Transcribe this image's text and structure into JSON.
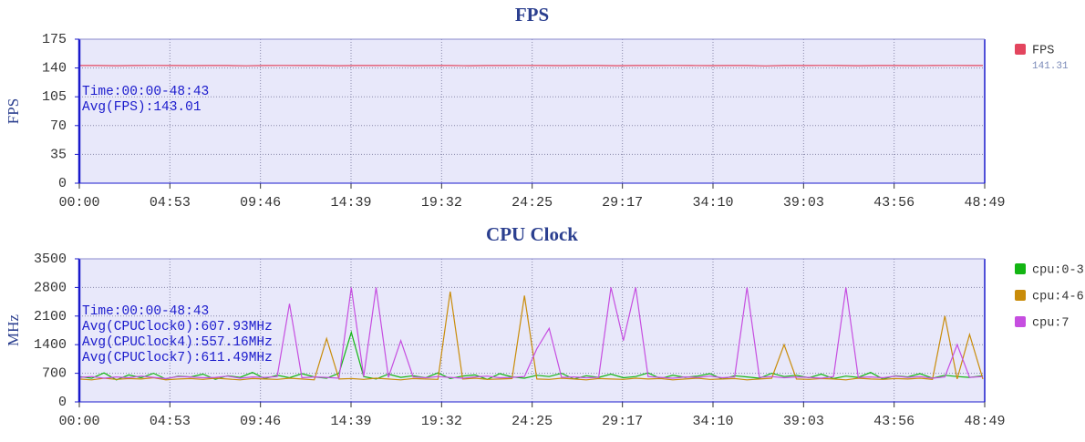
{
  "chart_data": [
    {
      "type": "line",
      "title": "FPS",
      "y_label": "FPS",
      "xlim": [
        0,
        2929
      ],
      "xticks": [
        {
          "value": 0,
          "label": "00:00"
        },
        {
          "value": 293,
          "label": "04:53"
        },
        {
          "value": 586,
          "label": "09:46"
        },
        {
          "value": 879,
          "label": "14:39"
        },
        {
          "value": 1172,
          "label": "19:32"
        },
        {
          "value": 1465,
          "label": "24:25"
        },
        {
          "value": 1757,
          "label": "29:17"
        },
        {
          "value": 2050,
          "label": "34:10"
        },
        {
          "value": 2343,
          "label": "39:03"
        },
        {
          "value": 2636,
          "label": "43:56"
        },
        {
          "value": 2929,
          "label": "48:49"
        }
      ],
      "ylim": [
        0,
        175
      ],
      "yticks": [
        0,
        35,
        70,
        105,
        140,
        175
      ],
      "grid": true,
      "x": [
        0,
        60,
        120,
        180,
        240,
        300,
        360,
        420,
        480,
        540,
        600,
        660,
        720,
        780,
        840,
        900,
        960,
        1020,
        1080,
        1140,
        1200,
        1260,
        1320,
        1380,
        1440,
        1500,
        1560,
        1620,
        1680,
        1740,
        1800,
        1860,
        1920,
        1980,
        2040,
        2100,
        2160,
        2220,
        2280,
        2340,
        2400,
        2460,
        2520,
        2580,
        2640,
        2700,
        2760,
        2820,
        2880,
        2923
      ],
      "series": [
        {
          "name": "FPS",
          "color": "#e3455e",
          "legend_value": 141.31,
          "values": [
            143,
            143,
            142.8,
            143,
            143.1,
            143,
            142.9,
            143,
            143,
            142.7,
            143,
            143.1,
            143,
            143,
            142.8,
            143,
            143,
            143.1,
            142.9,
            143,
            143,
            142.8,
            143,
            143,
            143.1,
            143,
            142.9,
            143,
            143,
            142.8,
            143,
            143,
            143.1,
            143,
            142.9,
            143,
            143,
            142.6,
            143,
            143,
            143.1,
            143,
            142.8,
            143,
            143,
            142.9,
            143,
            143.1,
            143,
            143
          ]
        }
      ],
      "annotations": [
        "Time:00:00-48:43",
        "Avg(FPS):143.01"
      ]
    },
    {
      "type": "line",
      "title": "CPU Clock",
      "y_label": "MHz",
      "xlim": [
        0,
        2929
      ],
      "xticks": [
        {
          "value": 0,
          "label": "00:00"
        },
        {
          "value": 293,
          "label": "04:53"
        },
        {
          "value": 586,
          "label": "09:46"
        },
        {
          "value": 879,
          "label": "14:39"
        },
        {
          "value": 1172,
          "label": "19:32"
        },
        {
          "value": 1465,
          "label": "24:25"
        },
        {
          "value": 1757,
          "label": "29:17"
        },
        {
          "value": 2050,
          "label": "34:10"
        },
        {
          "value": 2343,
          "label": "39:03"
        },
        {
          "value": 2636,
          "label": "43:56"
        },
        {
          "value": 2929,
          "label": "48:49"
        }
      ],
      "ylim": [
        0,
        3500
      ],
      "yticks": [
        0,
        700,
        1400,
        2100,
        2800,
        3500
      ],
      "grid": true,
      "x": [
        0,
        40,
        80,
        120,
        160,
        200,
        240,
        280,
        320,
        360,
        400,
        440,
        480,
        520,
        560,
        600,
        640,
        680,
        720,
        760,
        800,
        840,
        880,
        920,
        960,
        1000,
        1040,
        1080,
        1120,
        1160,
        1200,
        1240,
        1280,
        1320,
        1360,
        1400,
        1440,
        1480,
        1520,
        1560,
        1600,
        1640,
        1680,
        1720,
        1760,
        1800,
        1840,
        1880,
        1920,
        1960,
        2000,
        2040,
        2080,
        2120,
        2160,
        2200,
        2240,
        2280,
        2320,
        2360,
        2400,
        2440,
        2480,
        2520,
        2560,
        2600,
        2640,
        2680,
        2720,
        2760,
        2800,
        2840,
        2880,
        2923
      ],
      "series": [
        {
          "name": "cpu:0-3",
          "color": "#13b513",
          "values": [
            620,
            580,
            710,
            540,
            660,
            590,
            700,
            560,
            630,
            610,
            680,
            550,
            640,
            600,
            720,
            570,
            650,
            590,
            690,
            610,
            580,
            700,
            1700,
            620,
            560,
            680,
            600,
            640,
            590,
            710,
            570,
            630,
            660,
            550,
            690,
            610,
            580,
            650,
            620,
            700,
            560,
            640,
            600,
            680,
            590,
            620,
            710,
            570,
            650,
            600,
            630,
            690,
            560,
            640,
            610,
            580,
            700,
            620,
            650,
            590,
            680,
            570,
            630,
            600,
            720,
            560,
            640,
            610,
            690,
            580,
            650,
            620,
            600,
            640
          ]
        },
        {
          "name": "cpu:4-6",
          "color": "#c98c0a",
          "values": [
            560,
            540,
            580,
            550,
            570,
            560,
            590,
            540,
            560,
            570,
            550,
            580,
            560,
            540,
            570,
            560,
            550,
            580,
            560,
            540,
            1550,
            560,
            570,
            550,
            580,
            560,
            540,
            570,
            560,
            550,
            2700,
            560,
            580,
            550,
            560,
            570,
            2600,
            560,
            550,
            580,
            560,
            540,
            570,
            560,
            550,
            580,
            560,
            570,
            540,
            560,
            580,
            550,
            560,
            570,
            540,
            560,
            580,
            1400,
            560,
            550,
            570,
            560,
            540,
            580,
            560,
            550,
            570,
            560,
            580,
            550,
            2100,
            560,
            1650,
            560
          ]
        },
        {
          "name": "cpu:7",
          "color": "#c64ee0",
          "values": [
            600,
            620,
            580,
            610,
            590,
            630,
            600,
            570,
            620,
            610,
            590,
            600,
            630,
            580,
            610,
            600,
            620,
            2400,
            590,
            610,
            600,
            580,
            2800,
            620,
            2800,
            600,
            1500,
            610,
            590,
            620,
            600,
            580,
            610,
            630,
            590,
            600,
            620,
            1300,
            1800,
            600,
            610,
            590,
            600,
            2800,
            1500,
            2800,
            620,
            600,
            580,
            610,
            600,
            630,
            590,
            610,
            2800,
            600,
            620,
            590,
            610,
            600,
            580,
            620,
            2800,
            600,
            610,
            590,
            630,
            600,
            620,
            580,
            610,
            1400,
            600,
            620
          ]
        }
      ],
      "annotations": [
        "Time:00:00-48:43",
        "Avg(CPUClock0):607.93MHz",
        "Avg(CPUClock4):557.16MHz",
        "Avg(CPUClock7):611.49MHz"
      ]
    }
  ]
}
